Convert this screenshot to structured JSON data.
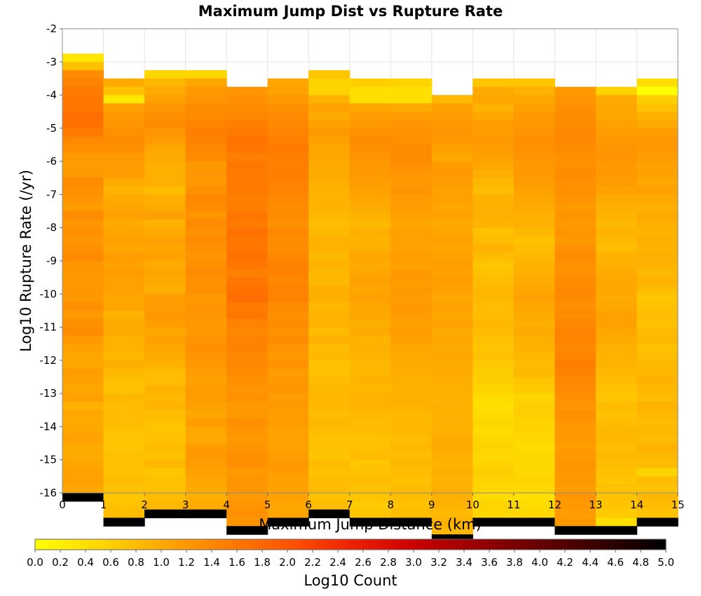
{
  "chart_data": {
    "type": "heatmap",
    "title": "Maximum Jump Dist vs Rupture Rate",
    "xlabel": "Maximum Jump Distance (km)",
    "ylabel": "Log10 Rupture Rate (/yr)",
    "colorbar_label": "Log10 Count",
    "xlim": [
      0,
      15
    ],
    "ylim": [
      -16,
      -2
    ],
    "color_range": [
      0.0,
      5.0
    ],
    "grid": true,
    "x_ticks": [
      "0",
      "1",
      "2",
      "3",
      "4",
      "5",
      "6",
      "7",
      "8",
      "9",
      "10",
      "11",
      "12",
      "13",
      "14",
      "15"
    ],
    "y_ticks": [
      "-2",
      "-3",
      "-4",
      "-5",
      "-6",
      "-7",
      "-8",
      "-9",
      "-10",
      "-11",
      "-12",
      "-13",
      "-14",
      "-15",
      "-16"
    ],
    "colorbar_ticks": [
      "0.0",
      "0.2",
      "0.4",
      "0.6",
      "0.8",
      "1.0",
      "1.2",
      "1.4",
      "1.6",
      "1.8",
      "2.0",
      "2.2",
      "2.4",
      "2.6",
      "2.8",
      "3.0",
      "3.2",
      "3.4",
      "3.6",
      "3.8",
      "4.0",
      "4.2",
      "4.4",
      "4.6",
      "4.8",
      "5.0"
    ],
    "colormap": [
      "#ffff00",
      "#ffd700",
      "#ffaa00",
      "#ff7f00",
      "#ff5500",
      "#ee2200",
      "#cc0000",
      "#990000",
      "#660000",
      "#330000",
      "#000000"
    ],
    "x_bin_edges": [
      0,
      1,
      2,
      3,
      4,
      5,
      6,
      7,
      8,
      9,
      10,
      11,
      12,
      13,
      14,
      15
    ],
    "y_bin_width": 0.25,
    "columns": [
      {
        "x_start": 0,
        "y_top": -2.75,
        "values": [
          0.3,
          0.75,
          1.35,
          1.45,
          1.55,
          1.6,
          1.6,
          1.7,
          1.65,
          1.55,
          1.4,
          1.3,
          1.2,
          1.15,
          1.2,
          1.35,
          1.3,
          1.25,
          1.15,
          1.35,
          1.25,
          1.3,
          1.25,
          1.3,
          1.35,
          1.25,
          1.2,
          1.2,
          1.25,
          1.2,
          1.3,
          1.2,
          1.3,
          1.35,
          1.2,
          1.1,
          1.05,
          1.05,
          1.15,
          1.1,
          1.05,
          1.1,
          0.95,
          1.05,
          1.0,
          1.05,
          1.1,
          1.0,
          1.0,
          1.05,
          1.1,
          1.1,
          1.05,
          5.0
        ]
      },
      {
        "x_start": 1,
        "y_top": -3.5,
        "values": [
          1.0,
          0.75,
          0.3,
          1.1,
          1.2,
          1.25,
          1.3,
          1.35,
          1.3,
          1.2,
          1.15,
          1.15,
          1.0,
          0.9,
          1.0,
          1.05,
          1.1,
          1.0,
          1.05,
          1.1,
          1.05,
          1.15,
          1.1,
          1.15,
          1.1,
          1.1,
          1.05,
          1.05,
          0.9,
          1.0,
          1.0,
          0.9,
          0.9,
          0.85,
          0.95,
          0.85,
          0.75,
          0.75,
          0.85,
          0.8,
          0.8,
          0.8,
          0.75,
          0.7,
          0.7,
          0.75,
          0.75,
          0.75,
          0.8,
          0.75,
          0.7,
          0.75,
          0.8,
          5.0
        ]
      },
      {
        "x_start": 2,
        "y_top": -3.25,
        "values": [
          0.5,
          0.85,
          1.0,
          1.1,
          1.25,
          1.3,
          1.35,
          1.25,
          1.15,
          1.05,
          1.0,
          0.95,
          0.95,
          0.95,
          0.8,
          0.95,
          1.0,
          1.1,
          0.9,
          1.0,
          1.1,
          1.05,
          1.1,
          1.0,
          1.05,
          1.0,
          0.95,
          1.15,
          1.15,
          1.2,
          1.15,
          1.05,
          1.1,
          1.05,
          1.0,
          0.9,
          0.8,
          0.8,
          0.9,
          0.85,
          0.9,
          0.8,
          0.75,
          0.7,
          0.75,
          0.8,
          0.75,
          0.85,
          0.7,
          0.75,
          0.75,
          0.8,
          0.85,
          5.0
        ]
      },
      {
        "x_start": 3,
        "y_top": -3.25,
        "values": [
          0.5,
          1.05,
          1.2,
          1.25,
          1.35,
          1.35,
          1.45,
          1.5,
          1.45,
          1.4,
          1.35,
          1.2,
          1.25,
          1.2,
          1.3,
          1.4,
          1.35,
          1.25,
          1.35,
          1.3,
          1.35,
          1.3,
          1.25,
          1.3,
          1.35,
          1.3,
          1.3,
          1.2,
          1.25,
          1.25,
          1.2,
          1.2,
          1.25,
          1.3,
          1.25,
          1.2,
          1.15,
          1.1,
          1.15,
          1.15,
          1.1,
          1.05,
          1.15,
          1.05,
          1.0,
          1.15,
          1.2,
          1.15,
          1.1,
          1.05,
          1.0,
          0.95,
          1.0,
          5.0
        ]
      },
      {
        "x_start": 4,
        "y_top": -3.75,
        "values": [
          1.25,
          1.3,
          1.35,
          1.4,
          1.5,
          1.55,
          1.65,
          1.6,
          1.5,
          1.6,
          1.55,
          1.55,
          1.55,
          1.5,
          1.5,
          1.6,
          1.55,
          1.65,
          1.6,
          1.6,
          1.65,
          1.6,
          1.5,
          1.6,
          1.65,
          1.7,
          1.55,
          1.6,
          1.45,
          1.4,
          1.45,
          1.45,
          1.4,
          1.4,
          1.35,
          1.3,
          1.25,
          1.3,
          1.2,
          1.2,
          1.3,
          1.25,
          1.2,
          1.25,
          1.3,
          1.3,
          1.2,
          1.25,
          1.25,
          1.2,
          1.25,
          1.3,
          1.25,
          5.0
        ]
      },
      {
        "x_start": 5,
        "y_top": -3.5,
        "values": [
          1.05,
          1.1,
          1.2,
          1.3,
          1.35,
          1.4,
          1.45,
          1.5,
          1.55,
          1.5,
          1.5,
          1.5,
          1.45,
          1.45,
          1.4,
          1.35,
          1.35,
          1.3,
          1.4,
          1.35,
          1.35,
          1.4,
          1.45,
          1.45,
          1.4,
          1.45,
          1.45,
          1.35,
          1.3,
          1.35,
          1.3,
          1.35,
          1.25,
          1.2,
          1.3,
          1.15,
          1.2,
          1.25,
          1.15,
          1.2,
          1.15,
          1.15,
          1.1,
          1.1,
          1.1,
          1.15,
          1.2,
          1.15,
          1.1,
          1.1,
          1.1,
          1.05,
          1.05,
          5.0
        ]
      },
      {
        "x_start": 6,
        "y_top": -3.25,
        "values": [
          0.7,
          0.55,
          0.55,
          0.9,
          1.1,
          1.0,
          1.1,
          1.2,
          1.1,
          1.05,
          1.05,
          1.0,
          1.0,
          0.95,
          0.9,
          0.9,
          0.9,
          0.85,
          0.8,
          0.85,
          0.9,
          0.9,
          0.85,
          0.9,
          0.85,
          0.85,
          0.95,
          0.95,
          0.85,
          0.9,
          0.9,
          0.8,
          0.95,
          0.8,
          0.85,
          0.75,
          0.75,
          0.8,
          0.85,
          0.85,
          0.85,
          0.8,
          0.85,
          0.8,
          0.75,
          0.75,
          0.7,
          0.8,
          0.75,
          0.8,
          0.8,
          0.75,
          0.8,
          5.0
        ]
      },
      {
        "x_start": 7,
        "y_top": -3.5,
        "values": [
          0.6,
          0.4,
          0.4,
          1.05,
          1.15,
          1.2,
          1.3,
          1.35,
          1.3,
          1.25,
          1.2,
          1.2,
          1.15,
          1.1,
          1.05,
          1.0,
          0.9,
          0.85,
          0.95,
          0.9,
          0.95,
          1.05,
          1.0,
          1.05,
          1.1,
          1.05,
          1.1,
          1.05,
          1.05,
          0.95,
          1.0,
          0.9,
          0.95,
          0.9,
          0.85,
          0.85,
          0.9,
          0.85,
          0.9,
          0.9,
          0.85,
          0.8,
          0.8,
          0.75,
          0.75,
          0.8,
          0.7,
          0.75,
          0.8,
          0.75,
          0.7,
          0.65,
          0.7,
          5.0
        ]
      },
      {
        "x_start": 8,
        "y_top": -3.5,
        "values": [
          0.55,
          0.4,
          0.4,
          1.0,
          1.15,
          1.25,
          1.3,
          1.3,
          1.35,
          1.35,
          1.3,
          1.25,
          1.2,
          1.25,
          1.15,
          1.15,
          1.1,
          1.05,
          1.1,
          1.1,
          1.1,
          1.15,
          1.1,
          1.2,
          1.15,
          1.2,
          1.15,
          1.2,
          1.15,
          1.1,
          1.15,
          1.1,
          1.05,
          1.0,
          1.0,
          0.95,
          0.95,
          0.9,
          0.95,
          0.9,
          0.85,
          0.85,
          0.85,
          0.8,
          0.85,
          0.8,
          0.85,
          0.8,
          0.75,
          0.8,
          0.8,
          0.75,
          0.8,
          5.0
        ]
      },
      {
        "x_start": 9,
        "y_top": -4.0,
        "values": [
          0.85,
          1.1,
          1.15,
          1.2,
          1.25,
          1.2,
          1.1,
          1.05,
          1.15,
          1.2,
          1.15,
          1.1,
          1.1,
          1.05,
          1.1,
          1.0,
          1.05,
          1.1,
          1.05,
          1.1,
          1.15,
          1.1,
          1.15,
          1.1,
          1.05,
          1.1,
          1.05,
          1.1,
          1.0,
          1.05,
          1.0,
          1.05,
          1.0,
          1.0,
          0.95,
          0.95,
          0.9,
          0.95,
          0.9,
          0.95,
          0.95,
          1.0,
          1.0,
          0.95,
          0.9,
          0.95,
          0.9,
          0.95,
          0.95,
          0.9,
          0.85,
          0.9,
          0.85,
          5.0
        ]
      },
      {
        "x_start": 10,
        "y_top": -3.5,
        "values": [
          0.7,
          1.0,
          1.05,
          0.9,
          1.05,
          1.15,
          1.15,
          1.2,
          1.15,
          1.1,
          1.05,
          0.95,
          0.85,
          0.8,
          0.9,
          0.95,
          0.95,
          0.9,
          0.75,
          0.8,
          0.9,
          0.8,
          0.7,
          0.75,
          0.8,
          0.85,
          0.85,
          0.8,
          0.8,
          0.85,
          0.8,
          0.75,
          0.7,
          0.75,
          0.65,
          0.6,
          0.6,
          0.55,
          0.45,
          0.4,
          0.45,
          0.5,
          0.45,
          0.5,
          0.55,
          0.5,
          0.55,
          0.6,
          0.55,
          0.5,
          0.45,
          0.55,
          0.5,
          5.0
        ]
      },
      {
        "x_start": 11,
        "y_top": -3.5,
        "values": [
          0.7,
          0.9,
          1.05,
          1.1,
          1.2,
          1.2,
          1.25,
          1.3,
          1.3,
          1.25,
          1.2,
          1.2,
          1.15,
          1.1,
          1.05,
          1.0,
          0.95,
          0.95,
          0.85,
          0.75,
          0.8,
          0.85,
          0.9,
          0.95,
          1.0,
          1.05,
          1.1,
          1.05,
          1.0,
          0.95,
          1.0,
          0.95,
          0.9,
          0.85,
          0.8,
          0.85,
          0.7,
          0.65,
          0.55,
          0.6,
          0.6,
          0.55,
          0.55,
          0.5,
          0.45,
          0.5,
          0.5,
          0.5,
          0.55,
          0.5,
          0.4,
          0.45,
          0.5,
          5.0
        ]
      },
      {
        "x_start": 12,
        "y_top": -3.75,
        "values": [
          1.2,
          1.25,
          1.3,
          1.35,
          1.35,
          1.4,
          1.4,
          1.35,
          1.3,
          1.3,
          1.35,
          1.3,
          1.3,
          1.25,
          1.2,
          1.25,
          1.2,
          1.25,
          1.2,
          1.3,
          1.35,
          1.3,
          1.3,
          1.35,
          1.4,
          1.35,
          1.3,
          1.35,
          1.4,
          1.45,
          1.45,
          1.4,
          1.45,
          1.5,
          1.45,
          1.4,
          1.35,
          1.3,
          1.25,
          1.3,
          1.25,
          1.2,
          1.2,
          1.15,
          1.2,
          1.25,
          1.2,
          1.2,
          1.15,
          1.25,
          1.2,
          1.15,
          1.2,
          5.0
        ]
      },
      {
        "x_start": 13,
        "y_top": -3.75,
        "values": [
          0.55,
          1.0,
          1.05,
          1.05,
          1.1,
          1.15,
          1.2,
          1.25,
          1.25,
          1.2,
          1.2,
          1.15,
          1.1,
          1.0,
          0.95,
          0.9,
          0.85,
          0.9,
          0.85,
          0.8,
          0.9,
          0.95,
          1.0,
          1.05,
          1.05,
          1.0,
          1.05,
          1.1,
          1.1,
          1.05,
          1.0,
          0.95,
          0.9,
          0.9,
          0.85,
          0.8,
          0.75,
          0.7,
          0.8,
          0.75,
          0.8,
          0.85,
          0.85,
          0.8,
          0.85,
          0.8,
          0.75,
          0.7,
          0.75,
          0.75,
          0.7,
          0.65,
          0.4,
          5.0
        ]
      },
      {
        "x_start": 14,
        "y_top": -3.5,
        "values": [
          0.4,
          0.0,
          0.6,
          0.75,
          0.9,
          1.0,
          1.15,
          1.2,
          1.2,
          1.15,
          1.1,
          1.1,
          1.05,
          1.1,
          1.0,
          0.95,
          1.0,
          0.95,
          0.9,
          0.95,
          0.9,
          0.95,
          0.9,
          0.85,
          0.9,
          0.8,
          0.7,
          0.75,
          0.8,
          0.75,
          0.8,
          0.85,
          0.75,
          0.8,
          0.85,
          0.85,
          0.9,
          0.85,
          0.8,
          0.9,
          0.85,
          0.8,
          0.85,
          0.8,
          0.9,
          0.85,
          0.8,
          0.55,
          0.8,
          0.75,
          0.85,
          0.8,
          0.75,
          5.0
        ]
      }
    ]
  }
}
